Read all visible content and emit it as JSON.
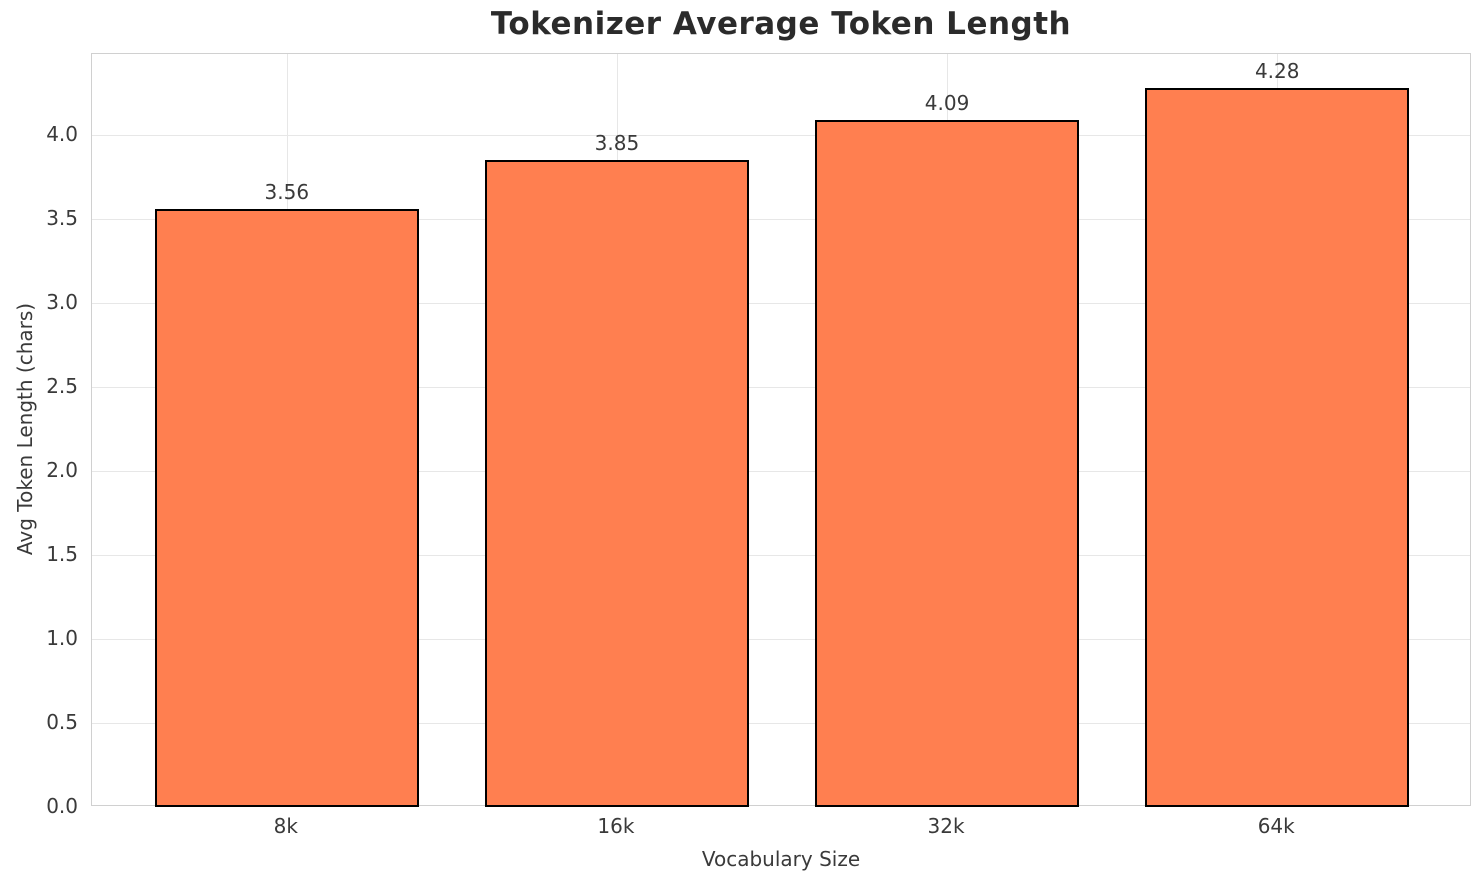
{
  "chart_data": {
    "type": "bar",
    "title": "Tokenizer Average Token Length",
    "xlabel": "Vocabulary Size",
    "ylabel": "Avg Token Length (chars)",
    "categories": [
      "8k",
      "16k",
      "32k",
      "64k"
    ],
    "values": [
      3.56,
      3.85,
      4.09,
      4.28
    ],
    "value_labels": [
      "3.56",
      "3.85",
      "4.09",
      "4.28"
    ],
    "ytick_values": [
      0.0,
      0.5,
      1.0,
      1.5,
      2.0,
      2.5,
      3.0,
      3.5,
      4.0
    ],
    "ytick_labels": [
      "0.0",
      "0.5",
      "1.0",
      "1.5",
      "2.0",
      "2.5",
      "3.0",
      "3.5",
      "4.0"
    ],
    "ylim": [
      0,
      4.48
    ],
    "grid": true,
    "legend_position": "none",
    "bar_color": "#FF7F50",
    "bar_edge_color": "#000000",
    "grid_color": "#e7e7e7",
    "spine_color": "#d0d0d0",
    "text_color": "#3a3a3a",
    "title_color": "#2b2b2b"
  }
}
